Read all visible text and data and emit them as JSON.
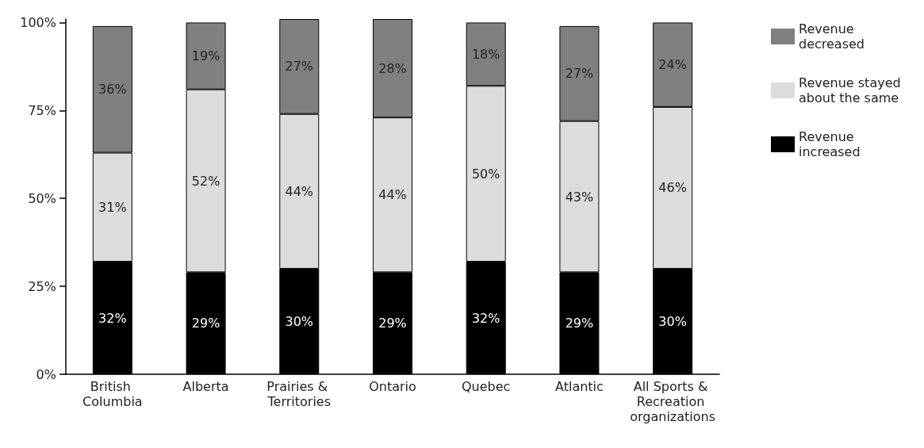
{
  "chart_data": {
    "type": "bar",
    "stacked": true,
    "categories": [
      "British Columbia",
      "Alberta",
      "Prairies & Territories",
      "Ontario",
      "Quebec",
      "Atlantic",
      "All Sports & Recreation organizations"
    ],
    "series": [
      {
        "name": "Revenue increased",
        "color": "#000000",
        "values": [
          32,
          29,
          30,
          29,
          32,
          29,
          30
        ],
        "value_labels": [
          "32%",
          "29%",
          "30%",
          "29%",
          "32%",
          "29%",
          "30%"
        ]
      },
      {
        "name": "Revenue stayed about the same",
        "color": "#dcdcdc",
        "values": [
          31,
          52,
          44,
          44,
          50,
          43,
          46
        ],
        "value_labels": [
          "31%",
          "52%",
          "44%",
          "44%",
          "50%",
          "43%",
          "46%"
        ]
      },
      {
        "name": "Revenue decreased",
        "color": "#808080",
        "values": [
          36,
          19,
          27,
          28,
          18,
          27,
          24
        ],
        "value_labels": [
          "36%",
          "19%",
          "27%",
          "28%",
          "18%",
          "27%",
          "24%"
        ]
      }
    ],
    "ylim": [
      0,
      101
    ],
    "yticks": [
      {
        "value": 0,
        "label": "0%"
      },
      {
        "value": 25,
        "label": "25%"
      },
      {
        "value": 50,
        "label": "50%"
      },
      {
        "value": 75,
        "label": "75%"
      },
      {
        "value": 100,
        "label": "100%"
      }
    ],
    "grid": false,
    "legend": "top right"
  }
}
